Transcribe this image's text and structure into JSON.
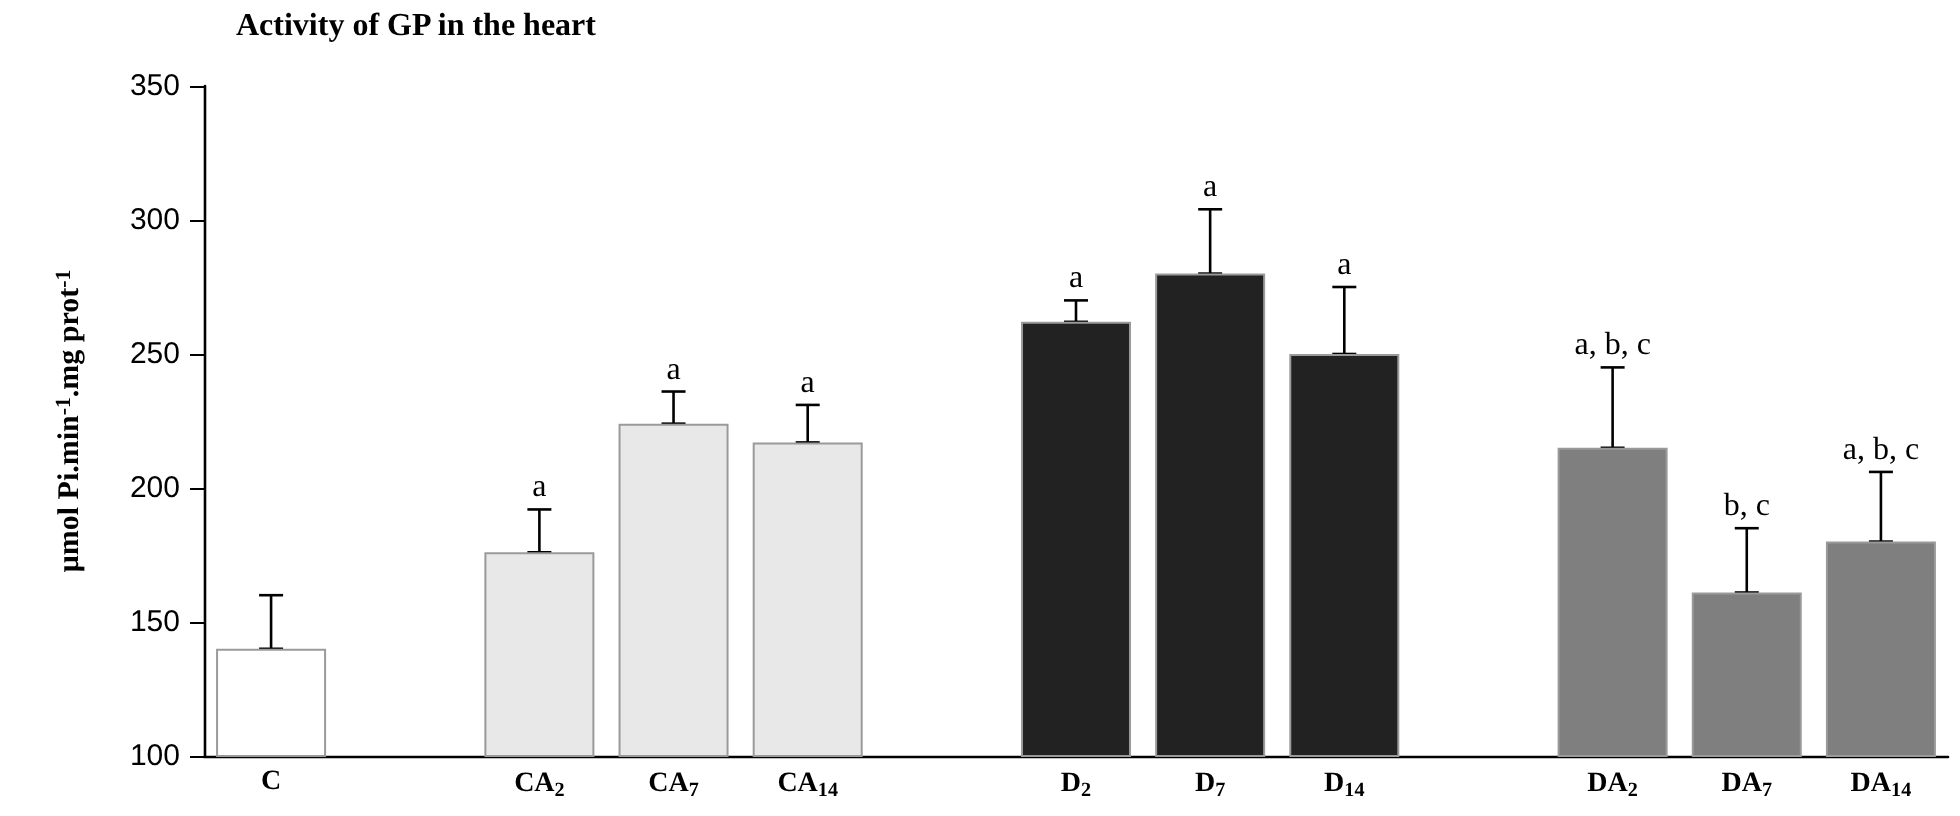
{
  "chart_data": {
    "type": "bar",
    "title": "Activity of GP in the heart",
    "ylabel": "μmol Pi.min$^{-1}$.mg prot$^{-1}$",
    "categories": [
      "C",
      null,
      "CA$_{2}$",
      "CA$_{7}$",
      "CA$_{14}$",
      null,
      "D$_{2}$",
      "D$_{7}$",
      "D$_{14}$",
      null,
      "DA$_{2}$",
      "DA$_{7}$",
      "DA$_{14}$"
    ],
    "values": [
      140,
      null,
      176,
      224,
      217,
      null,
      262,
      280,
      250,
      null,
      215,
      161,
      180
    ],
    "colors": [
      "#ffffff",
      null,
      "#e8e8e8",
      "#e8e8e8",
      "#e8e8e8",
      null,
      "#222222",
      "#222222",
      "#222222",
      null,
      "#7f7f7f",
      "#7f7f7f",
      "#7f7f7f"
    ],
    "errors": [
      [
        140,
        160
      ],
      null,
      [
        176,
        192
      ],
      [
        224,
        236
      ],
      [
        217,
        231
      ],
      null,
      [
        262,
        270
      ],
      [
        280,
        304
      ],
      [
        250,
        275
      ],
      null,
      [
        215,
        245
      ],
      [
        161,
        185
      ],
      [
        180,
        206
      ]
    ],
    "ylim": [
      100,
      350
    ],
    "yticks": [
      100,
      150,
      200,
      250,
      300,
      350
    ],
    "value_labels": [
      null,
      null,
      "a",
      "a",
      "a",
      null,
      "a",
      "a",
      "a",
      null,
      "a, b, c",
      "b, c",
      "a, b, c"
    ],
    "grid": false
  }
}
